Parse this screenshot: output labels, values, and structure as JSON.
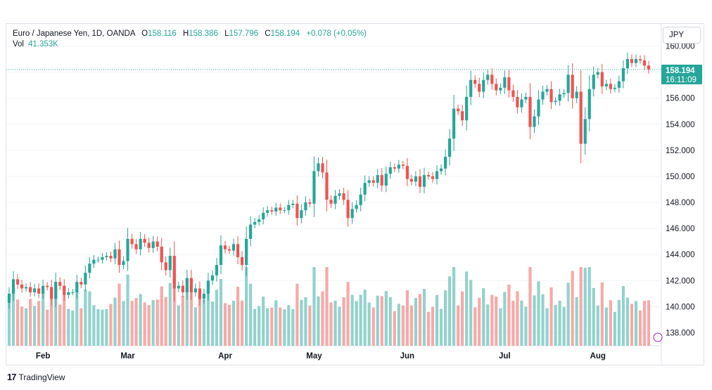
{
  "legend": {
    "symbol": "Euro / Japanese Yen, 1D, OANDA",
    "o_label": "O",
    "o_value": "158.116",
    "h_label": "H",
    "h_value": "158.386",
    "l_label": "L",
    "l_value": "157.796",
    "c_label": "C",
    "c_value": "158.194",
    "change": "+0.078 (+0.05%)",
    "vol_label": "Vol",
    "vol_value": "41.353K"
  },
  "currency_button": "JPY",
  "last_price_tag": {
    "price": "158.194",
    "countdown": "16:11:09"
  },
  "branding": "TradingView",
  "colors": {
    "up": "#26a69a",
    "down": "#ef5350",
    "up_vol": "#92d2cc",
    "down_vol": "#f7a9a7"
  },
  "chart_data": {
    "type": "candlestick",
    "y_ticks": [
      "160.000",
      "158.000",
      "156.000",
      "154.000",
      "152.000",
      "150.000",
      "148.000",
      "146.000",
      "144.000",
      "142.000",
      "140.000",
      "138.000"
    ],
    "ylim": [
      137,
      160.3
    ],
    "x_ticks": [
      "Feb",
      "Mar",
      "Apr",
      "May",
      "Jun",
      "Jul",
      "Aug"
    ],
    "last_price": 158.194,
    "closes": [
      141.0,
      142.1,
      141.7,
      141.4,
      141.5,
      141.1,
      141.4,
      141.0,
      141.6,
      141.5,
      140.6,
      141.9,
      141.6,
      140.9,
      141.1,
      141.1,
      141.9,
      141.7,
      142.6,
      143.3,
      143.6,
      143.6,
      143.8,
      143.9,
      143.7,
      144.4,
      143.2,
      143.5,
      145.2,
      144.8,
      144.4,
      145.2,
      144.9,
      144.5,
      145.0,
      144.6,
      143.4,
      142.8,
      143.9,
      141.4,
      141.6,
      141.1,
      142.2,
      141.1,
      141.4,
      140.6,
      141.0,
      142.0,
      142.4,
      143.2,
      144.7,
      144.4,
      144.3,
      144.8,
      143.8,
      143.2,
      145.2,
      146.3,
      146.5,
      146.7,
      147.2,
      147.4,
      147.3,
      147.6,
      147.4,
      147.4,
      147.8,
      147.9,
      146.8,
      147.4,
      148.0,
      147.9,
      150.4,
      151.0,
      150.3,
      148.2,
      147.9,
      148.5,
      148.7,
      148.2,
      146.8,
      147.5,
      147.8,
      148.6,
      149.5,
      149.7,
      149.5,
      150.1,
      149.3,
      150.2,
      150.7,
      150.6,
      150.9,
      150.8,
      149.8,
      149.6,
      150.0,
      149.2,
      150.1,
      150.0,
      149.8,
      150.4,
      150.6,
      151.5,
      152.9,
      155.2,
      155.0,
      154.3,
      156.1,
      157.4,
      157.1,
      156.5,
      157.4,
      157.8,
      157.1,
      156.6,
      156.8,
      157.6,
      156.6,
      156.1,
      155.3,
      155.9,
      156.1,
      153.8,
      154.6,
      155.9,
      156.5,
      156.7,
      155.7,
      155.8,
      156.3,
      156.4,
      157.8,
      156.0,
      156.5,
      152.5,
      154.4,
      156.7,
      157.8,
      158.0,
      156.9,
      157.1,
      156.7,
      156.8,
      157.3,
      158.3,
      159.0,
      158.7,
      159.0,
      158.9,
      158.5,
      158.2
    ]
  }
}
